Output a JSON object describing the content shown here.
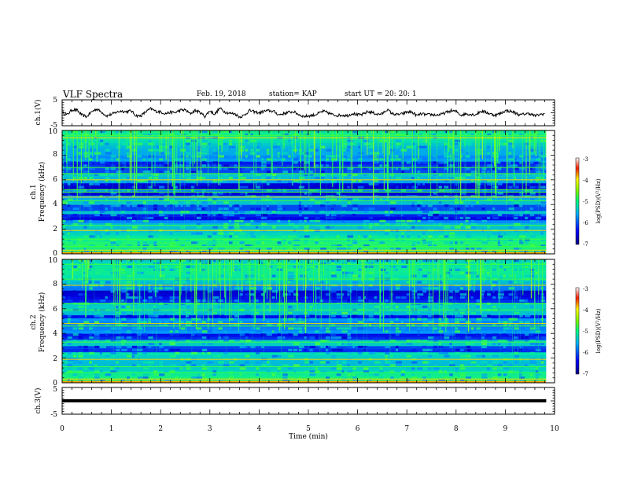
{
  "header": {
    "title": "VLF Spectra",
    "date": "Feb. 19, 2018",
    "station": "station= KAP",
    "start": "start  UT  =   20: 20: 1"
  },
  "chart_data": [
    {
      "type": "line",
      "name": "ch1-waveform",
      "ylabel": "ch.1(V)",
      "ylim": [
        -5,
        5
      ],
      "yticks": [
        "5",
        "-5"
      ],
      "xlim": [
        0,
        10
      ],
      "x_extent": [
        0,
        9.83
      ],
      "waveform_points": [
        [
          0.0,
          0.1
        ],
        [
          0.1,
          -0.8
        ],
        [
          0.2,
          1.2
        ],
        [
          0.3,
          1.0
        ],
        [
          0.4,
          -0.9
        ],
        [
          0.5,
          -1.5
        ],
        [
          0.6,
          0.4
        ],
        [
          0.7,
          1.5
        ],
        [
          0.8,
          0.3
        ],
        [
          0.9,
          -1.2
        ],
        [
          1.0,
          -0.6
        ],
        [
          1.1,
          0.2
        ],
        [
          1.2,
          0.7
        ],
        [
          1.3,
          0.4
        ],
        [
          1.4,
          0.8
        ],
        [
          1.5,
          -1.1
        ],
        [
          1.6,
          -1.2
        ],
        [
          1.7,
          0.4
        ],
        [
          1.8,
          1.6
        ],
        [
          1.9,
          0.6
        ],
        [
          2.0,
          0.3
        ],
        [
          2.1,
          -0.3
        ],
        [
          2.2,
          0.2
        ],
        [
          2.3,
          0.1
        ],
        [
          2.4,
          1.0
        ],
        [
          2.5,
          1.1
        ],
        [
          2.6,
          -0.4
        ],
        [
          2.7,
          0.9
        ],
        [
          2.8,
          0.2
        ],
        [
          2.9,
          -1.4
        ],
        [
          3.0,
          0.8
        ],
        [
          3.1,
          -0.6
        ],
        [
          3.2,
          1.8
        ],
        [
          3.3,
          0.4
        ],
        [
          3.4,
          -0.2
        ],
        [
          3.5,
          -0.3
        ],
        [
          3.6,
          -1.6
        ],
        [
          3.7,
          -1.0
        ],
        [
          3.8,
          0.9
        ],
        [
          3.9,
          0.4
        ],
        [
          4.0,
          -0.1
        ],
        [
          4.1,
          0.6
        ],
        [
          4.2,
          0.8
        ],
        [
          4.3,
          0.5
        ],
        [
          4.4,
          -0.8
        ],
        [
          4.5,
          -0.3
        ],
        [
          4.6,
          0.2
        ],
        [
          4.7,
          0.4
        ],
        [
          4.8,
          -0.6
        ],
        [
          4.9,
          -1.4
        ],
        [
          5.0,
          -1.2
        ],
        [
          5.1,
          -0.9
        ],
        [
          5.2,
          -0.3
        ],
        [
          5.3,
          0.6
        ],
        [
          5.4,
          0.0
        ],
        [
          5.5,
          -0.8
        ],
        [
          5.6,
          -1.0
        ],
        [
          5.7,
          -0.9
        ],
        [
          5.8,
          -1.1
        ],
        [
          5.9,
          -0.2
        ],
        [
          6.0,
          -0.8
        ],
        [
          6.1,
          -0.7
        ],
        [
          6.2,
          0.4
        ],
        [
          6.3,
          0.1
        ],
        [
          6.4,
          -0.6
        ],
        [
          6.5,
          -0.4
        ],
        [
          6.6,
          1.3
        ],
        [
          6.7,
          -0.3
        ],
        [
          6.8,
          -0.7
        ],
        [
          6.9,
          -0.5
        ],
        [
          7.0,
          0.3
        ],
        [
          7.1,
          0.3
        ],
        [
          7.2,
          -1.1
        ],
        [
          7.3,
          -0.4
        ],
        [
          7.4,
          -0.8
        ],
        [
          7.5,
          -0.7
        ],
        [
          7.6,
          -0.9
        ],
        [
          7.7,
          -0.6
        ],
        [
          7.8,
          0.1
        ],
        [
          7.9,
          0.8
        ],
        [
          8.0,
          0.5
        ],
        [
          8.1,
          -0.9
        ],
        [
          8.2,
          -0.4
        ],
        [
          8.3,
          -0.6
        ],
        [
          8.4,
          -0.7
        ],
        [
          8.5,
          0.6
        ],
        [
          8.6,
          0.3
        ],
        [
          8.7,
          -0.5
        ],
        [
          8.8,
          -0.9
        ],
        [
          8.9,
          -0.3
        ],
        [
          9.0,
          0.8
        ],
        [
          9.1,
          0.6
        ],
        [
          9.2,
          0.0
        ],
        [
          9.3,
          -0.9
        ],
        [
          9.4,
          -0.4
        ],
        [
          9.5,
          -0.3
        ],
        [
          9.6,
          -1.2
        ],
        [
          9.7,
          -0.7
        ],
        [
          9.8,
          -0.3
        ]
      ]
    },
    {
      "type": "heatmap",
      "name": "ch1-spectrogram",
      "ylabel_top": "ch.1",
      "ylabel": "Frequency  (kHz)",
      "ylim": [
        0,
        10
      ],
      "yticks": [
        "0",
        "2",
        "4",
        "6",
        "8",
        "10"
      ],
      "xlim": [
        0,
        10
      ],
      "x_extent": [
        0,
        9.83
      ],
      "colorbar": {
        "label": "log(PSD)(V²/Hz)",
        "range": [
          -7,
          -3
        ],
        "ticks": [
          "-3",
          "-4",
          "-5",
          "-6",
          "-7"
        ]
      },
      "low_power_bands_khz": [
        [
          2.7,
          3.2
        ],
        [
          3.6,
          4.0
        ],
        [
          5.3,
          5.8
        ],
        [
          6.6,
          7.6
        ],
        [
          4.8,
          5.0
        ]
      ],
      "high_power_lines_khz": [
        0.3,
        0.6,
        1.2,
        1.9,
        2.3,
        4.3,
        4.6,
        5.0,
        5.2,
        6.0,
        6.5,
        7.0,
        9.4,
        9.6,
        10.0
      ]
    },
    {
      "type": "heatmap",
      "name": "ch2-spectrogram",
      "ylabel_top": "ch.2",
      "ylabel": "Frequency  (kHz)",
      "ylim": [
        0,
        10
      ],
      "yticks": [
        "0",
        "2",
        "4",
        "6",
        "8",
        "10"
      ],
      "xlim": [
        0,
        10
      ],
      "x_extent": [
        0,
        9.83
      ],
      "colorbar": {
        "label": "log(PSD)(V²/Hz)",
        "range": [
          -7,
          -3
        ],
        "ticks": [
          "-3",
          "-4",
          "-5",
          "-6",
          "-7"
        ]
      },
      "low_power_bands_khz": [
        [
          2.5,
          3.1
        ],
        [
          3.6,
          4.0
        ],
        [
          6.6,
          7.5
        ],
        [
          5.2,
          5.6
        ]
      ],
      "high_power_lines_khz": [
        0.3,
        0.8,
        1.3,
        1.9,
        3.3,
        4.6,
        4.8,
        5.9,
        6.4,
        7.9,
        8.4,
        9.6,
        10.0
      ]
    },
    {
      "type": "line",
      "name": "ch3-waveform",
      "ylabel": "ch.3(V)",
      "ylim": [
        -5,
        5
      ],
      "yticks": [
        "5",
        "-5"
      ],
      "xlim": [
        0,
        10
      ],
      "x_extent": [
        0,
        9.83
      ],
      "constant_value": 0
    }
  ],
  "xaxis": {
    "label": "Time  (min)",
    "ticks": [
      "0",
      "1",
      "2",
      "3",
      "4",
      "5",
      "6",
      "7",
      "8",
      "9",
      "10"
    ]
  }
}
